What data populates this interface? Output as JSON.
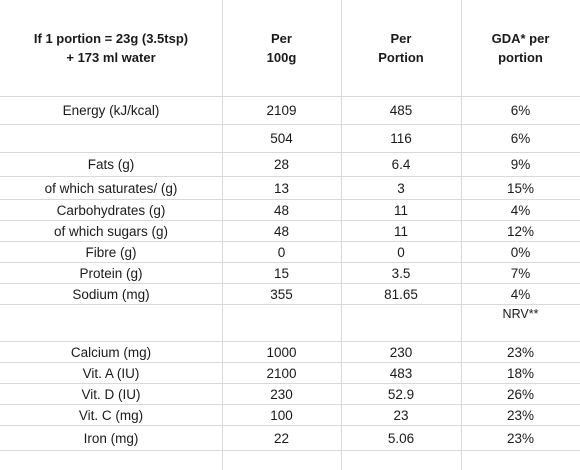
{
  "header": {
    "col0": "If 1 portion = 23g (3.5tsp)\n+ 173 ml water",
    "col1": "Per\n100g",
    "col2": "Per\nPortion",
    "col3": "GDA* per\nportion"
  },
  "rows": [
    {
      "label": "Energy (kJ/kcal)",
      "per100g": "2109",
      "perPortion": "485",
      "gda": "6%"
    },
    {
      "label": "",
      "per100g": "504",
      "perPortion": "116",
      "gda": "6%"
    },
    {
      "label": "Fats (g)",
      "per100g": "28",
      "perPortion": "6.4",
      "gda": "9%"
    },
    {
      "label": "of which saturates/ (g)",
      "per100g": "13",
      "perPortion": "3",
      "gda": "15%"
    },
    {
      "label": "Carbohydrates (g)",
      "per100g": "48",
      "perPortion": "11",
      "gda": "4%"
    },
    {
      "label": "of which sugars (g)",
      "per100g": "48",
      "perPortion": "11",
      "gda": "12%"
    },
    {
      "label": "Fibre (g)",
      "per100g": "0",
      "perPortion": "0",
      "gda": "0%"
    },
    {
      "label": "Protein (g)",
      "per100g": "15",
      "perPortion": "3.5",
      "gda": "7%"
    },
    {
      "label": "Sodium (mg)",
      "per100g": "355",
      "perPortion": "81.65",
      "gda": "4%"
    },
    {
      "label": "",
      "per100g": "",
      "perPortion": "",
      "gda": "NRV**"
    },
    {
      "label": "",
      "per100g": "",
      "perPortion": "",
      "gda": ""
    },
    {
      "label": "Calcium (mg)",
      "per100g": "1000",
      "perPortion": "230",
      "gda": "23%"
    },
    {
      "label": "Vit. A (IU)",
      "per100g": "2100",
      "perPortion": "483",
      "gda": "18%"
    },
    {
      "label": "Vit. D (IU)",
      "per100g": "230",
      "perPortion": "52.9",
      "gda": "26%"
    },
    {
      "label": "Vit. C (mg)",
      "per100g": "100",
      "perPortion": "23",
      "gda": "23%"
    },
    {
      "label": "Iron (mg)",
      "per100g": "22",
      "perPortion": "5.06",
      "gda": "23%"
    }
  ]
}
